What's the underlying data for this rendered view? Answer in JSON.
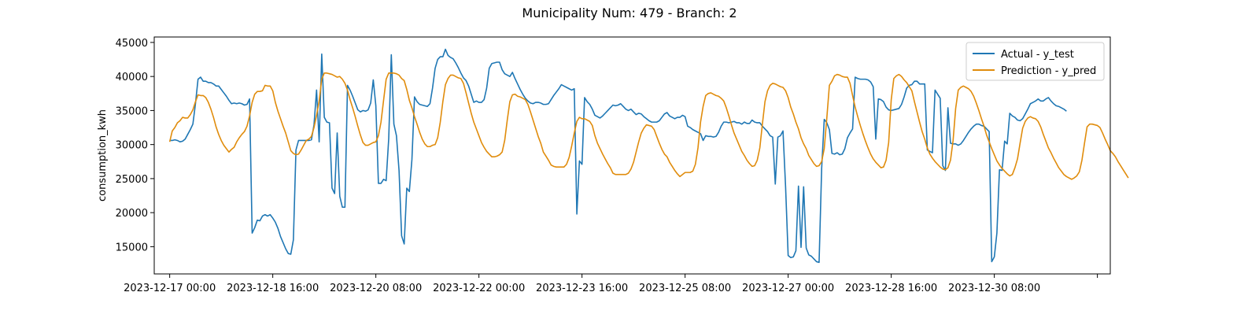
{
  "figure": {
    "title": "Municipality Num: 479 - Branch: 2"
  },
  "chart_data": {
    "type": "line",
    "title": "Municipality Num: 479 - Branch: 2",
    "xlabel": "",
    "ylabel": "consumption_kwh",
    "x_start": "2023-12-17 00:00",
    "x_end": "2023-12-31 23:00",
    "x_step": "1h",
    "xlim": [
      "2023-12-16 18:00",
      "2023-12-32 05:00"
    ],
    "ylim": [
      11000,
      45800
    ],
    "x_ticks": [
      "2023-12-17 00:00",
      "2023-12-18 16:00",
      "2023-12-20 08:00",
      "2023-12-22 00:00",
      "2023-12-23 16:00",
      "2023-12-25 08:00",
      "2023-12-27 00:00",
      "2023-12-28 16:00",
      "2023-12-30 08:00",
      ""
    ],
    "y_ticks": [
      15000,
      20000,
      25000,
      30000,
      35000,
      40000,
      45000
    ],
    "y_tick_labels": [
      "15000",
      "20000",
      "25000",
      "30000",
      "35000",
      "40000",
      "45000"
    ],
    "grid": false,
    "legend_position": "top-right",
    "series": [
      {
        "name": "Actual - y_test",
        "color": "#1f77b4",
        "values": [
          30600,
          30600,
          30700,
          30600,
          30400,
          30500,
          30800,
          31500,
          32200,
          33000,
          36000,
          39600,
          39900,
          39300,
          39300,
          39100,
          39100,
          38900,
          38600,
          38600,
          38100,
          37600,
          37100,
          36500,
          36000,
          36100,
          36000,
          36100,
          36000,
          35800,
          35900,
          36700,
          17000,
          17800,
          18900,
          18800,
          19500,
          19700,
          19500,
          19700,
          19200,
          18600,
          17700,
          16500,
          15600,
          14700,
          14000,
          13900,
          16000,
          29200,
          30600,
          30600,
          30600,
          30600,
          30600,
          30700,
          32900,
          38000,
          30400,
          43300,
          34000,
          33300,
          33200,
          23600,
          22800,
          31700,
          22400,
          20800,
          20800,
          38700,
          38000,
          37100,
          36100,
          35100,
          34800,
          35000,
          34900,
          35100,
          36100,
          39500,
          35700,
          24300,
          24300,
          24900,
          24700,
          30900,
          43200,
          33000,
          31300,
          26200,
          16600,
          15400,
          23600,
          23100,
          27800,
          37000,
          36300,
          35900,
          35800,
          35700,
          35600,
          36000,
          38300,
          41200,
          42500,
          42900,
          42900,
          44000,
          43100,
          42800,
          42600,
          42000,
          41300,
          40500,
          39800,
          39400,
          38600,
          37400,
          36200,
          36400,
          36200,
          36200,
          36600,
          38300,
          41200,
          41900,
          42000,
          42100,
          42100,
          41000,
          40400,
          40200,
          40000,
          40600,
          39700,
          38900,
          38100,
          37400,
          36800,
          36400,
          36100,
          36000,
          36200,
          36200,
          36100,
          35900,
          35900,
          36000,
          36600,
          37200,
          37700,
          38200,
          38800,
          38600,
          38400,
          38200,
          38000,
          38200,
          19800,
          27600,
          27100,
          36900,
          36300,
          35900,
          35200,
          34300,
          34100,
          33900,
          34200,
          34600,
          35000,
          35400,
          35800,
          35700,
          35800,
          36000,
          35600,
          35200,
          35000,
          35200,
          34800,
          34400,
          34600,
          34500,
          34100,
          33800,
          33500,
          33300,
          33300,
          33300,
          33500,
          34000,
          34500,
          34700,
          34200,
          34000,
          33800,
          34000,
          34000,
          34300,
          34100,
          32700,
          32500,
          32200,
          32000,
          31800,
          31600,
          30600,
          31300,
          31200,
          31200,
          31100,
          31200,
          31800,
          32700,
          33300,
          33300,
          33200,
          33300,
          33400,
          33200,
          33200,
          33000,
          33300,
          33100,
          33100,
          33600,
          33300,
          33200,
          33200,
          32700,
          32300,
          31900,
          31300,
          31100,
          24200,
          31100,
          31300,
          32000,
          23800,
          13700,
          13400,
          13500,
          14400,
          23900,
          14900,
          23800,
          14800,
          13800,
          13600,
          13200,
          12800,
          12700,
          26500,
          33700,
          33200,
          32200,
          28700,
          28600,
          28800,
          28500,
          28600,
          29400,
          31000,
          31700,
          32300,
          39900,
          39700,
          39600,
          39600,
          39600,
          39500,
          39200,
          38500,
          30800,
          36700,
          36600,
          36300,
          35500,
          35100,
          35000,
          35100,
          35200,
          35300,
          35900,
          37000,
          38300,
          38700,
          38800,
          39300,
          39300,
          38900,
          38900,
          38900,
          29200,
          29000,
          28800,
          38000,
          37400,
          36800,
          26900,
          26200,
          35400,
          30200,
          30100,
          30100,
          29900,
          30100,
          30600,
          31200,
          31800,
          32300,
          32700,
          33000,
          33000,
          32800,
          32700,
          32300,
          31900,
          12800,
          13500,
          17000,
          26300,
          26200,
          30500,
          30100,
          34600,
          34200,
          34000,
          33600,
          33500,
          33800,
          34500,
          35200,
          36000,
          36200,
          36400,
          36700,
          36400,
          36400,
          36700,
          36900,
          36400,
          36000,
          35700,
          35600,
          35400,
          35200,
          34900
        ]
      },
      {
        "name": "Prediction - y_pred",
        "color": "#e08c0c",
        "values": [
          30400,
          32000,
          32500,
          33200,
          33500,
          34000,
          33900,
          33900,
          34400,
          35100,
          36300,
          37300,
          37200,
          37200,
          36900,
          36200,
          35200,
          34000,
          32600,
          31500,
          30600,
          29900,
          29400,
          28900,
          29300,
          29600,
          30400,
          31000,
          31500,
          31900,
          32700,
          34200,
          36200,
          37400,
          37800,
          37800,
          37900,
          38700,
          38600,
          38600,
          37900,
          36200,
          34900,
          33800,
          32700,
          31700,
          30400,
          29100,
          28700,
          28500,
          28600,
          29200,
          29900,
          30600,
          30800,
          31200,
          32500,
          34300,
          36400,
          39600,
          40500,
          40500,
          40400,
          40300,
          40100,
          39900,
          40000,
          39600,
          39000,
          38000,
          36600,
          35400,
          34100,
          32700,
          31400,
          30300,
          29900,
          29900,
          30100,
          30300,
          30400,
          31300,
          33300,
          36500,
          39600,
          40500,
          40500,
          40500,
          40400,
          40200,
          39700,
          39400,
          38100,
          36500,
          35400,
          34100,
          33000,
          31800,
          30800,
          30100,
          29700,
          29700,
          29900,
          30000,
          31000,
          33300,
          36300,
          38800,
          39700,
          40200,
          40200,
          40000,
          39800,
          39700,
          39000,
          37600,
          36100,
          34600,
          33300,
          32300,
          31300,
          30300,
          29600,
          29000,
          28600,
          28200,
          28200,
          28300,
          28500,
          28900,
          30600,
          33600,
          36300,
          37300,
          37400,
          37100,
          37000,
          36800,
          36600,
          35900,
          34800,
          33600,
          32400,
          31200,
          30200,
          28900,
          28300,
          27700,
          27000,
          26800,
          26700,
          26700,
          26700,
          26700,
          27100,
          28100,
          29800,
          31700,
          33400,
          34000,
          33800,
          33800,
          33600,
          33400,
          32800,
          31300,
          30200,
          29400,
          28600,
          27900,
          27200,
          26600,
          25800,
          25600,
          25600,
          25600,
          25600,
          25600,
          25800,
          26400,
          27400,
          28900,
          30400,
          31700,
          32400,
          32900,
          32800,
          32700,
          32200,
          31200,
          30200,
          29300,
          28600,
          28200,
          27400,
          26800,
          26200,
          25700,
          25300,
          25600,
          25900,
          25900,
          25900,
          26100,
          27100,
          29500,
          33300,
          35600,
          37200,
          37500,
          37600,
          37400,
          37200,
          37100,
          36800,
          36400,
          35400,
          34200,
          32900,
          31700,
          30800,
          29900,
          29000,
          28400,
          27700,
          27200,
          26800,
          26900,
          27700,
          29500,
          33000,
          36300,
          37900,
          38700,
          39000,
          38900,
          38700,
          38500,
          38400,
          37900,
          36900,
          35500,
          34500,
          33300,
          32300,
          31000,
          30100,
          29400,
          28400,
          27800,
          27200,
          26800,
          26900,
          27500,
          29400,
          33900,
          38700,
          39300,
          40100,
          40300,
          40200,
          40000,
          39900,
          39900,
          39000,
          37200,
          35500,
          34100,
          32800,
          31600,
          30500,
          29500,
          28600,
          27900,
          27400,
          27000,
          26600,
          26700,
          27700,
          30300,
          36600,
          39700,
          40100,
          40300,
          40000,
          39500,
          39100,
          38500,
          37900,
          36300,
          34800,
          33300,
          31900,
          30800,
          29500,
          28600,
          28000,
          27500,
          27100,
          26700,
          26400,
          26300,
          26600,
          27700,
          30600,
          35300,
          38000,
          38400,
          38600,
          38400,
          38200,
          37800,
          37100,
          36100,
          35000,
          33800,
          32700,
          31400,
          30400,
          29400,
          28500,
          27600,
          27000,
          26500,
          26100,
          25700,
          25400,
          25600,
          26600,
          27900,
          30200,
          32400,
          33400,
          33900,
          34100,
          33900,
          33800,
          33400,
          32600,
          31500,
          30500,
          29500,
          28800,
          28000,
          27300,
          26600,
          26100,
          25600,
          25300,
          25100,
          24900,
          25100,
          25400,
          26000,
          27700,
          30200,
          32600,
          33000,
          33000,
          32900,
          32800,
          32500,
          31700,
          30800,
          30000,
          29100,
          28700,
          28200,
          27500,
          26900,
          26300,
          25700,
          25100
        ]
      }
    ]
  }
}
